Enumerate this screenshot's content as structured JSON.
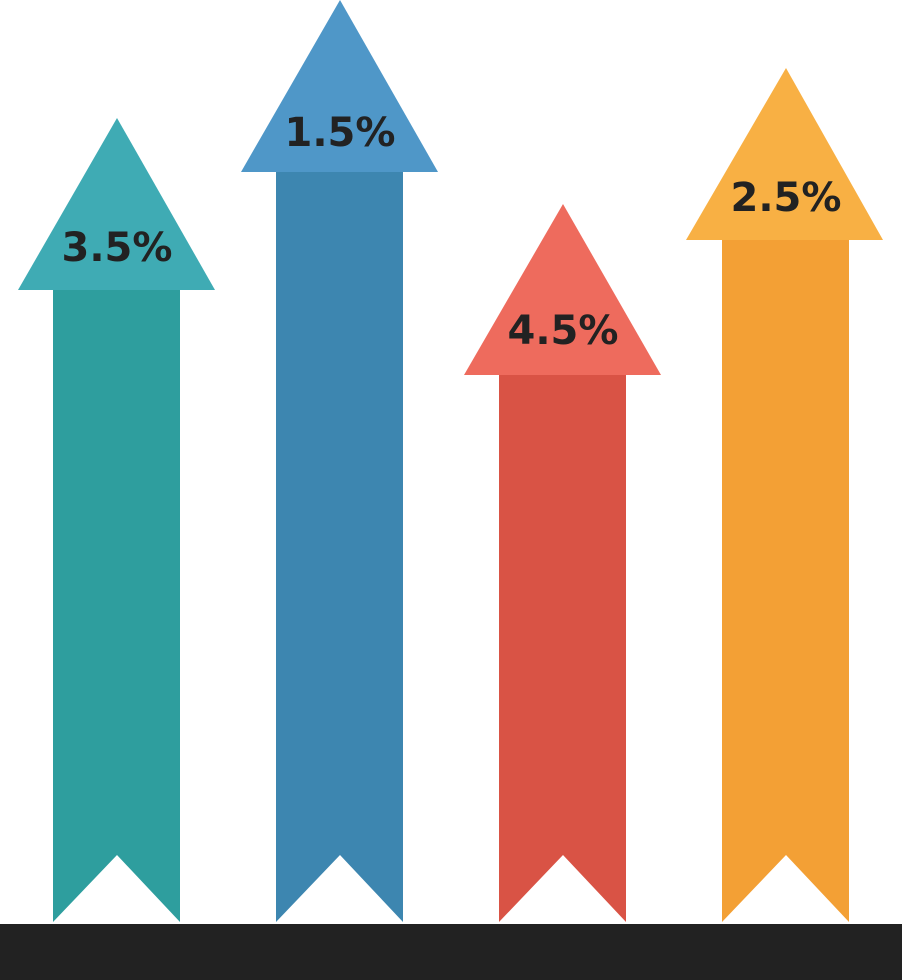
{
  "arrows": [
    {
      "label": "3.5%"
    },
    {
      "label": "1.5%"
    },
    {
      "label": "4.5%"
    },
    {
      "label": "2.5%"
    }
  ]
}
